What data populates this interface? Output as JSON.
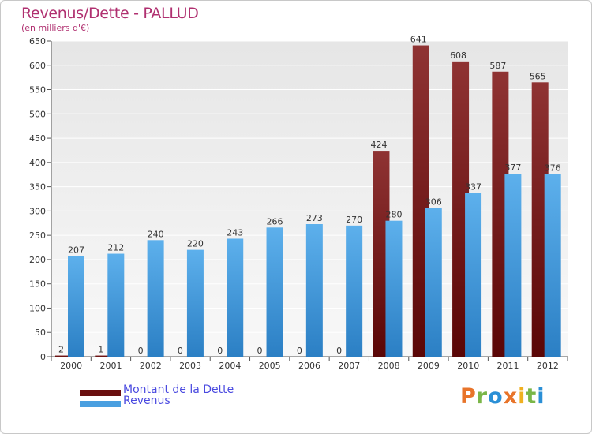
{
  "chart_data": {
    "type": "bar",
    "title": "Revenus/Dette - PALLUD",
    "subtitle": "(en milliers d'€)",
    "categories": [
      "2000",
      "2001",
      "2002",
      "2003",
      "2004",
      "2005",
      "2006",
      "2007",
      "2008",
      "2009",
      "2010",
      "2011",
      "2012"
    ],
    "series": [
      {
        "name": "Montant de la Dette",
        "color": "#7a1c1c",
        "values": [
          2,
          1,
          0,
          0,
          0,
          0,
          0,
          0,
          424,
          641,
          608,
          587,
          565
        ]
      },
      {
        "name": "Revenus",
        "color": "#4a9fe0",
        "values": [
          207,
          212,
          240,
          220,
          243,
          266,
          273,
          270,
          280,
          306,
          337,
          377,
          376
        ]
      }
    ],
    "ylim": [
      0,
      650
    ],
    "yticks": [
      0,
      50,
      100,
      150,
      200,
      250,
      300,
      350,
      400,
      450,
      500,
      550,
      600,
      650
    ],
    "grid": true,
    "legend": "bottom-left"
  },
  "legend": {
    "debt_label": "Montant de la Dette",
    "revenue_label": "Revenus"
  },
  "branding": {
    "logo_text": "Proxiti"
  }
}
